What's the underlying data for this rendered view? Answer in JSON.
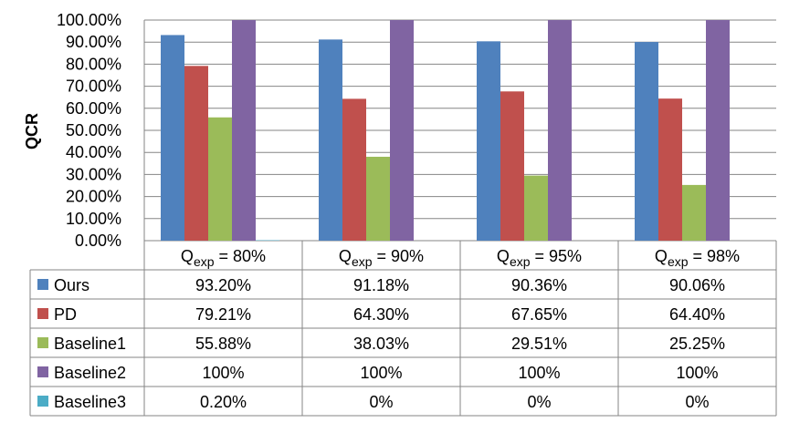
{
  "chart_data": {
    "type": "bar",
    "ylabel": "QCR",
    "xlabel": "",
    "ylim": [
      0,
      100
    ],
    "yticks": [
      "0.00%",
      "10.00%",
      "20.00%",
      "30.00%",
      "40.00%",
      "50.00%",
      "60.00%",
      "70.00%",
      "80.00%",
      "90.00%",
      "100.00%"
    ],
    "categories": [
      {
        "prefix": "Q",
        "sub": "exp",
        "suffix": " = 80%"
      },
      {
        "prefix": "Q",
        "sub": "exp",
        "suffix": " = 90%"
      },
      {
        "prefix": "Q",
        "sub": "exp",
        "suffix": " = 95%"
      },
      {
        "prefix": "Q",
        "sub": "exp",
        "suffix": " = 98%"
      }
    ],
    "grid": true,
    "legend": "data-table",
    "series": [
      {
        "name": "Ours",
        "color": "#4f81bd",
        "values": [
          93.2,
          91.18,
          90.36,
          90.06
        ],
        "labels": [
          "93.20%",
          "91.18%",
          "90.36%",
          "90.06%"
        ]
      },
      {
        "name": "PD",
        "color": "#c0504d",
        "values": [
          79.21,
          64.3,
          67.65,
          64.4
        ],
        "labels": [
          "79.21%",
          "64.30%",
          "67.65%",
          "64.40%"
        ]
      },
      {
        "name": "Baseline1",
        "color": "#9bbb59",
        "values": [
          55.88,
          38.03,
          29.51,
          25.25
        ],
        "labels": [
          "55.88%",
          "38.03%",
          "29.51%",
          "25.25%"
        ]
      },
      {
        "name": "Baseline2",
        "color": "#8064a2",
        "values": [
          100,
          100,
          100,
          100
        ],
        "labels": [
          "100%",
          "100%",
          "100%",
          "100%"
        ]
      },
      {
        "name": "Baseline3",
        "color": "#4bacc6",
        "values": [
          0.2,
          0,
          0,
          0
        ],
        "labels": [
          "0.20%",
          "0%",
          "0%",
          "0%"
        ]
      }
    ]
  }
}
